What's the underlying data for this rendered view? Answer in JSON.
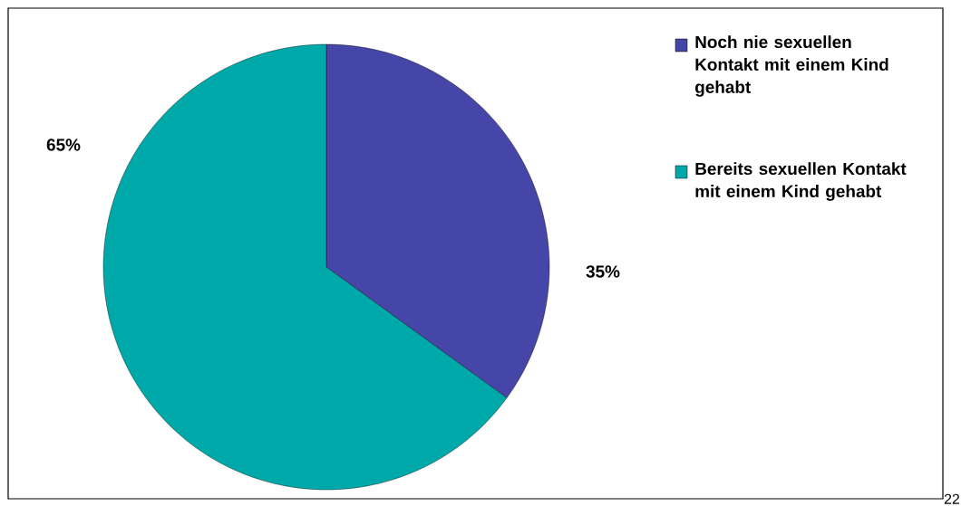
{
  "chart_data": {
    "type": "pie",
    "categories": [
      "Noch nie sexuellen Kontakt mit einem Kind gehabt",
      "Bereits sexuellen Kontakt mit einem Kind gehabt"
    ],
    "values": [
      35,
      65
    ],
    "colors": [
      "#4646a8",
      "#00a9a9"
    ],
    "value_labels": [
      "35%",
      "65%"
    ],
    "legend": "right",
    "annotations": [
      "22"
    ]
  }
}
